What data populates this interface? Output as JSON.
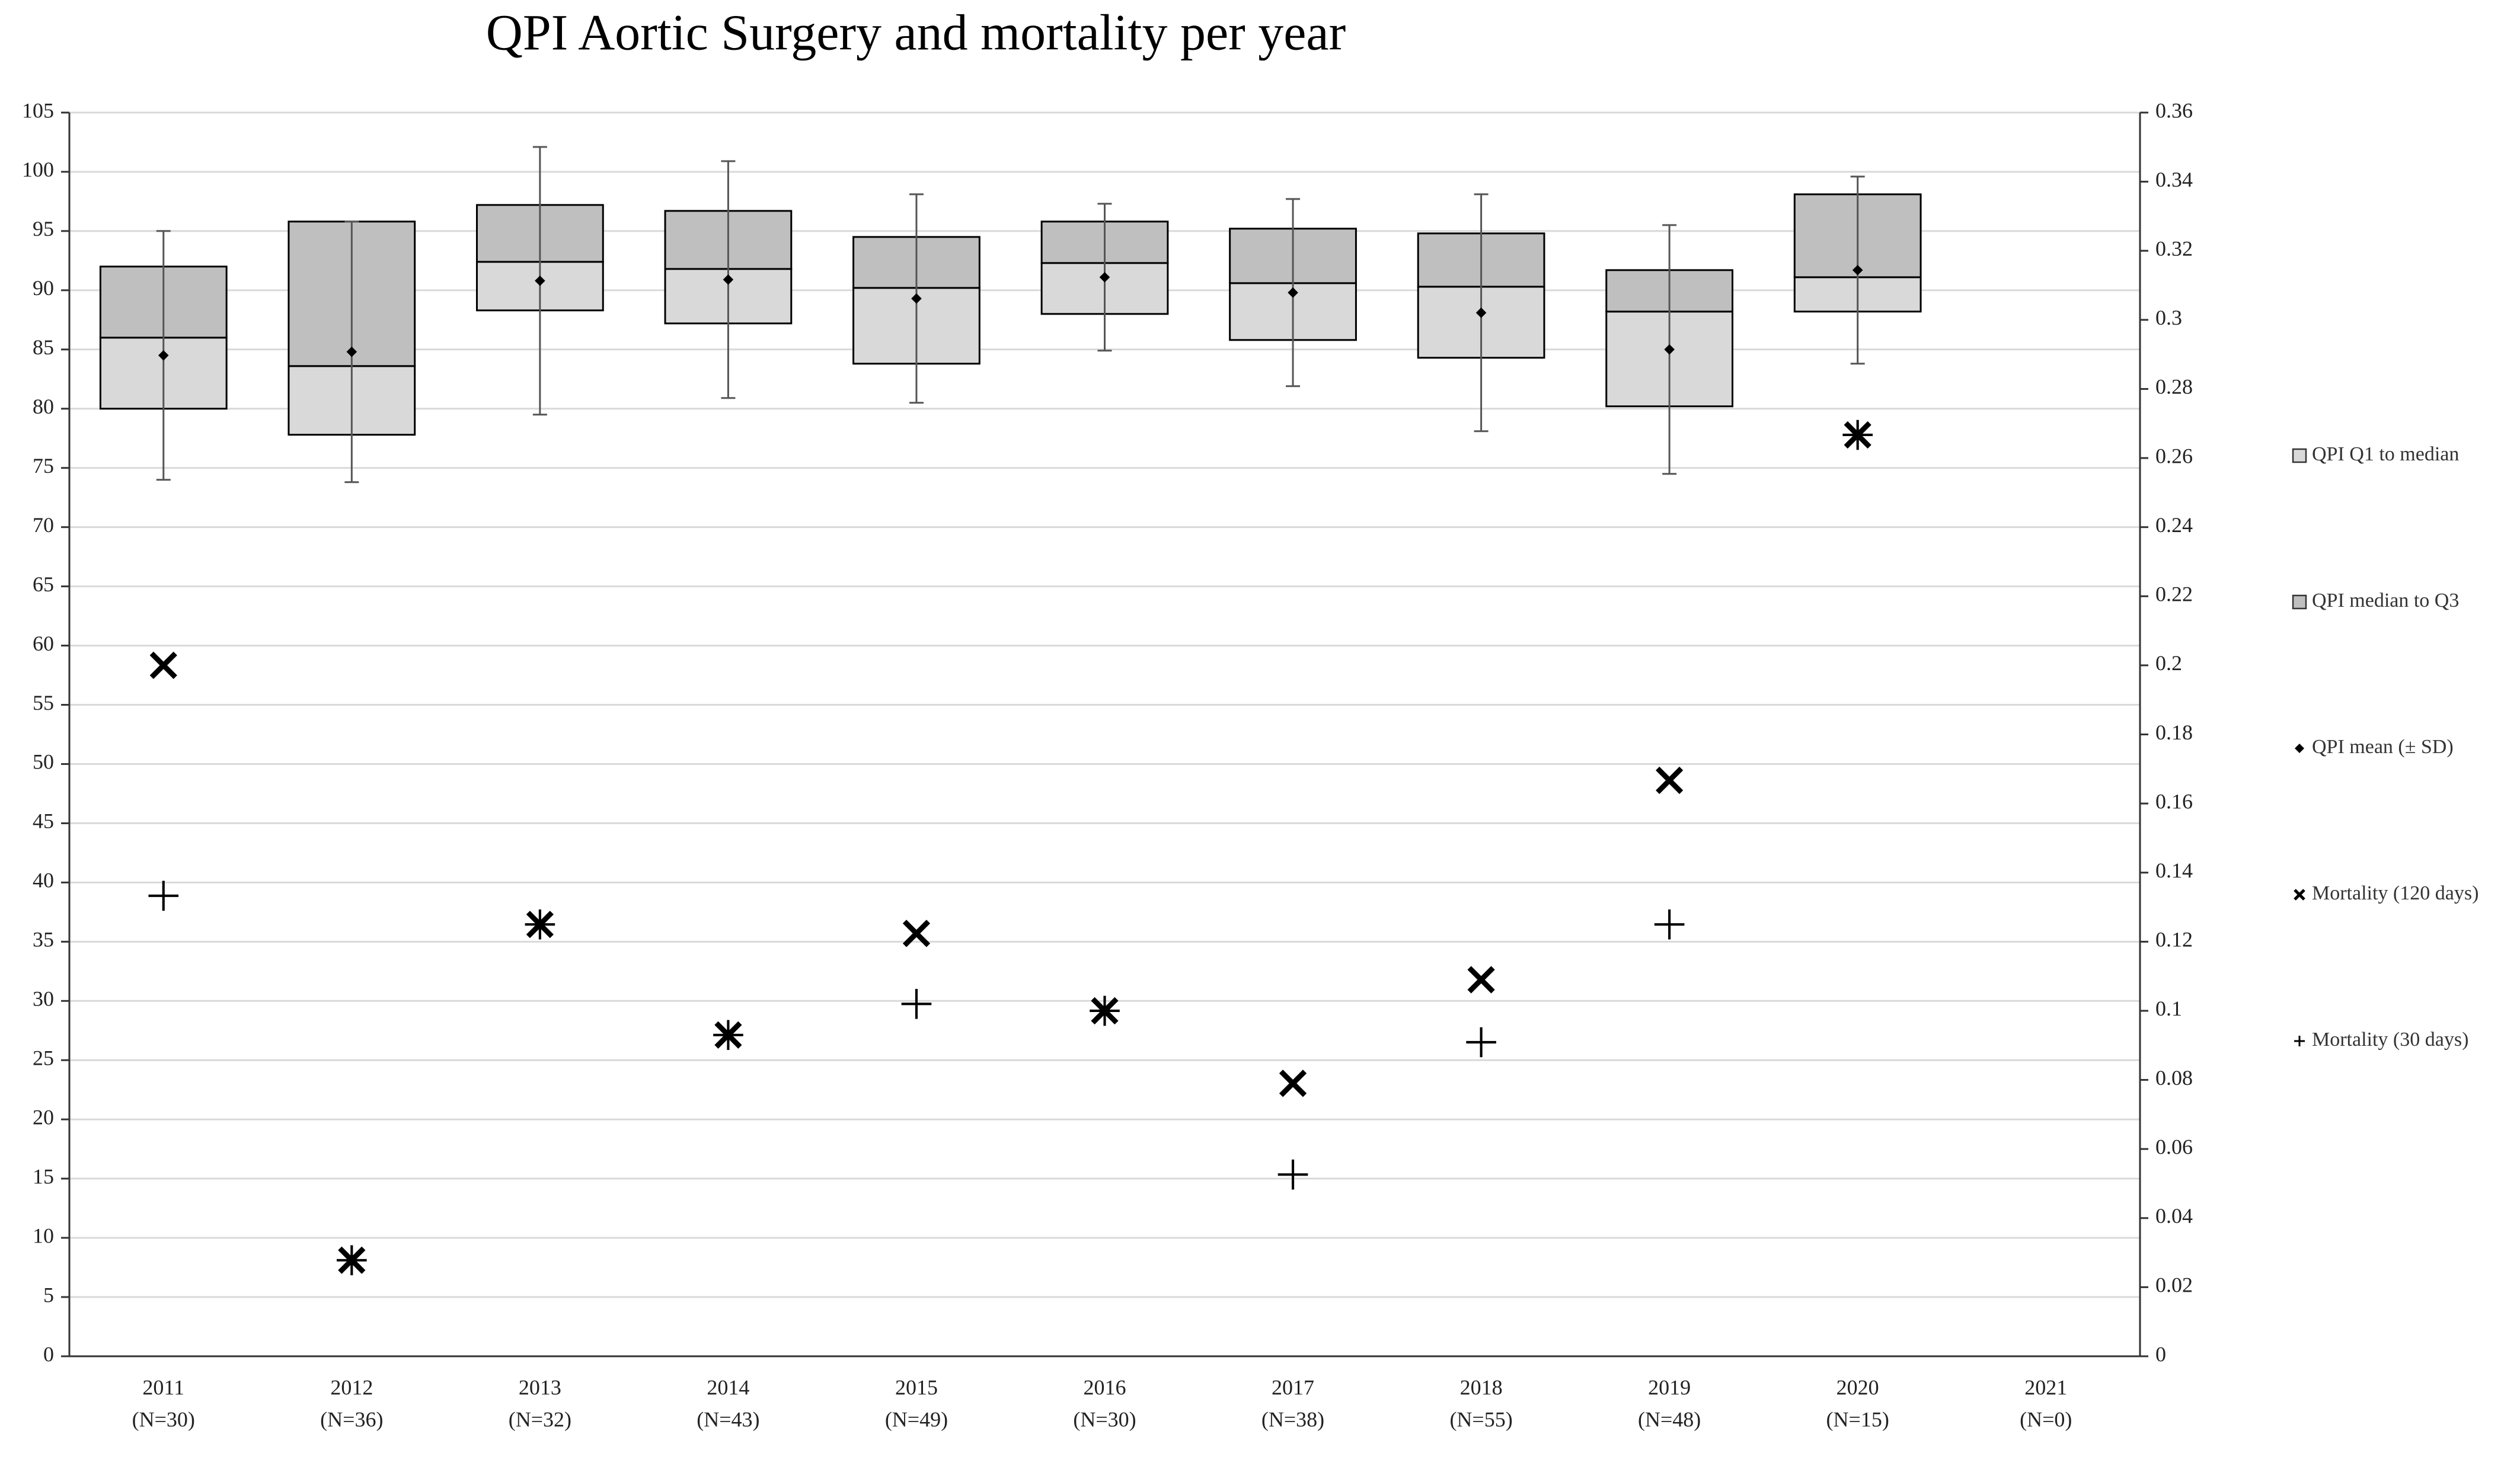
{
  "chart_data": {
    "type": "box",
    "title": "QPI Aortic Surgery and mortality per year",
    "categories": [
      "2011",
      "2012",
      "2013",
      "2014",
      "2015",
      "2016",
      "2017",
      "2018",
      "2019",
      "2020",
      "2021"
    ],
    "category_sublabels": [
      "(N=30)",
      "(N=36)",
      "(N=32)",
      "(N=43)",
      "(N=49)",
      "(N=30)",
      "(N=38)",
      "(N=55)",
      "(N=48)",
      "(N=15)",
      "(N=0)"
    ],
    "ylim": [
      0,
      105
    ],
    "yticks": [
      0,
      5,
      10,
      15,
      20,
      25,
      30,
      35,
      40,
      45,
      50,
      55,
      60,
      65,
      70,
      75,
      80,
      85,
      90,
      95,
      100,
      105
    ],
    "y2lim": [
      0,
      0.36
    ],
    "y2ticks": [
      0,
      0.02,
      0.04,
      0.06,
      0.08,
      0.1,
      0.12,
      0.14,
      0.16,
      0.18,
      0.2,
      0.22,
      0.24,
      0.26,
      0.28,
      0.3,
      0.32,
      0.34,
      0.36
    ],
    "grid": true,
    "legend": "right",
    "box": {
      "lower_name": "QPI Q1 to median",
      "lower_color": "#d9d9d9",
      "upper_name": "QPI median to Q3",
      "upper_color": "#bfbfbf",
      "mean_name": "QPI mean (± SD)",
      "mean_color": "#000000",
      "q1": [
        80,
        77.8,
        88.3,
        87.2,
        83.8,
        88,
        85.8,
        84.3,
        80.2,
        88.2,
        null
      ],
      "median": [
        86,
        83.6,
        92.4,
        91.8,
        90.2,
        92.3,
        90.6,
        90.3,
        88.2,
        91.1,
        null
      ],
      "q3": [
        92,
        95.8,
        97.2,
        96.7,
        94.5,
        95.8,
        95.2,
        94.8,
        91.7,
        98.1,
        null
      ],
      "mean": [
        84.5,
        84.8,
        90.8,
        90.9,
        89.3,
        91.1,
        89.8,
        88.1,
        85,
        91.7,
        null
      ],
      "sd": [
        10.5,
        11,
        11.3,
        10,
        8.8,
        6.2,
        7.9,
        10,
        10.5,
        7.9,
        null
      ]
    },
    "series": [
      {
        "name": "Mortality (120 days)",
        "marker": "x",
        "color": "#000000",
        "axis": "y2",
        "values": [
          0.2,
          0.0278,
          0.125,
          0.093,
          0.1224,
          0.1,
          0.079,
          0.109,
          0.1667,
          0.2667,
          null
        ]
      },
      {
        "name": "Mortality (30 days)",
        "marker": "+",
        "color": "#000000",
        "axis": "y2",
        "values": [
          0.1333,
          0.0278,
          0.125,
          0.093,
          0.102,
          0.1,
          0.0526,
          0.0909,
          0.125,
          0.2667,
          null
        ]
      }
    ]
  }
}
